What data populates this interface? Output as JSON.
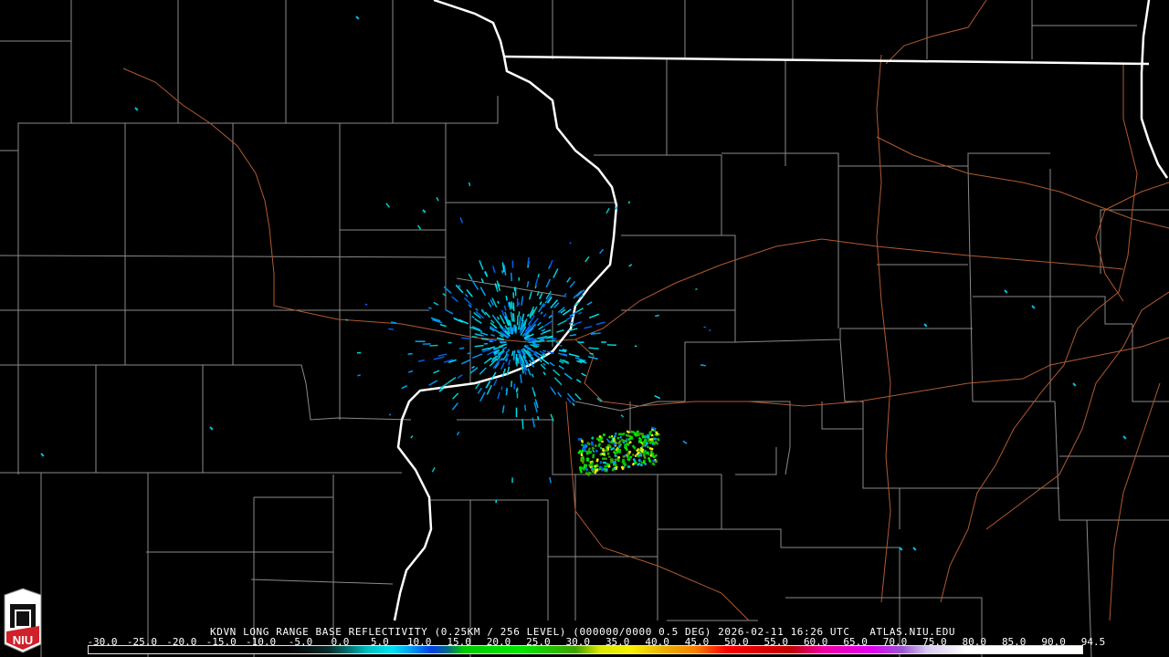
{
  "product_title": "KDVN LONG RANGE BASE REFLECTIVITY (0.25KM / 256 LEVEL) (000000/0000 0.5 DEG) 2026-02-11 16:26 UTC   ATLAS.NIU.EDU",
  "logo": {
    "text": "NIU",
    "icon": "niu-tower-logo"
  },
  "legend": {
    "unit_scale_min": -30.0,
    "unit_scale_max": 94.5,
    "labels": [
      "-30.0",
      "-25.0",
      "-20.0",
      "-15.0",
      "-10.0",
      "-5.0",
      "0.0",
      "5.0",
      "10.0",
      "15.0",
      "20.0",
      "25.0",
      "30.0",
      "35.0",
      "40.0",
      "45.0",
      "50.0",
      "55.0",
      "60.0",
      "65.0",
      "70.0",
      "75.0",
      "80.0",
      "85.0",
      "90.0",
      "94.5"
    ],
    "color_stops": [
      {
        "value": -30,
        "color": "#000000"
      },
      {
        "value": -5,
        "color": "#000000"
      },
      {
        "value": 0,
        "color": "#0a2a2a"
      },
      {
        "value": 2.5,
        "color": "#007070"
      },
      {
        "value": 5,
        "color": "#00c0c0"
      },
      {
        "value": 8,
        "color": "#00e0f0"
      },
      {
        "value": 10,
        "color": "#00a8f0"
      },
      {
        "value": 13,
        "color": "#0040e8"
      },
      {
        "value": 15,
        "color": "#006a80"
      },
      {
        "value": 17,
        "color": "#00c800"
      },
      {
        "value": 24,
        "color": "#00e800"
      },
      {
        "value": 31,
        "color": "#40a000"
      },
      {
        "value": 34,
        "color": "#d8e800"
      },
      {
        "value": 38,
        "color": "#f8f000"
      },
      {
        "value": 42,
        "color": "#e8b000"
      },
      {
        "value": 46,
        "color": "#f88000"
      },
      {
        "value": 50,
        "color": "#f80000"
      },
      {
        "value": 58,
        "color": "#c00000"
      },
      {
        "value": 62,
        "color": "#f000a0"
      },
      {
        "value": 68,
        "color": "#e000f0"
      },
      {
        "value": 72,
        "color": "#9858d0"
      },
      {
        "value": 75,
        "color": "#d8c8f0"
      },
      {
        "value": 80,
        "color": "#ffffff"
      },
      {
        "value": 94.5,
        "color": "#ffffff"
      }
    ]
  },
  "map_colors": {
    "county": "#8a8a8a",
    "state": "#ffffff",
    "highway": "#b05a30",
    "background": "#000000"
  }
}
